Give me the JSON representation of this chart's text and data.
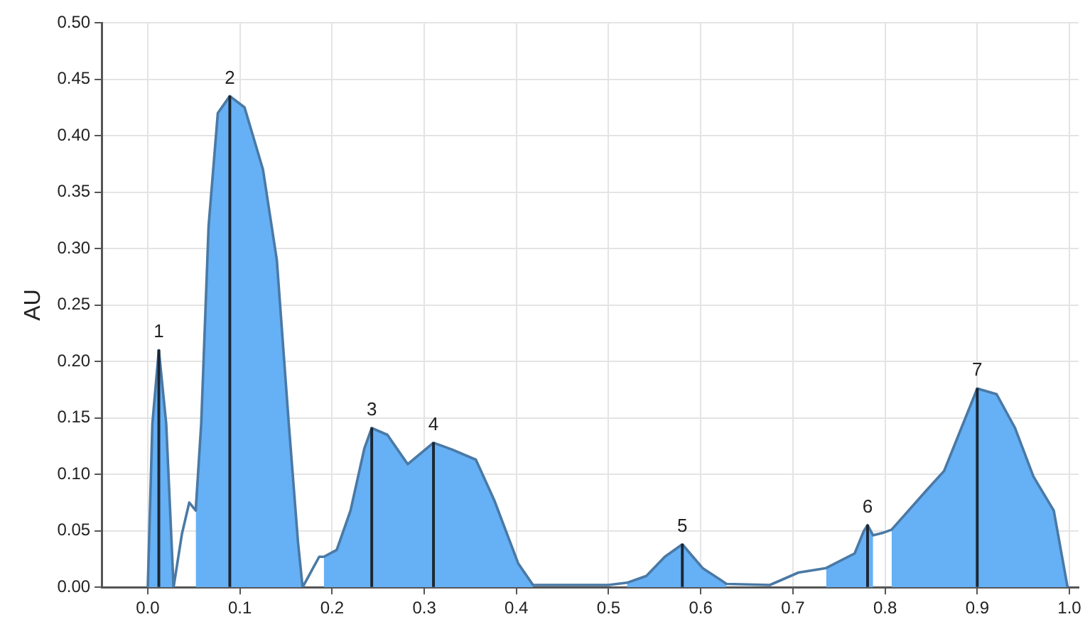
{
  "chart_data": {
    "type": "area",
    "ylabel": "AU",
    "x": [
      0,
      0.005,
      0.012,
      0.02,
      0.028,
      0.037,
      0.045,
      0.052,
      0.058,
      0.066,
      0.076,
      0.089,
      0.105,
      0.125,
      0.14,
      0.153,
      0.163,
      0.168,
      0.186,
      0.191,
      0.205,
      0.22,
      0.235,
      0.243,
      0.26,
      0.282,
      0.31,
      0.33,
      0.356,
      0.376,
      0.402,
      0.418,
      0.5,
      0.52,
      0.541,
      0.561,
      0.58,
      0.602,
      0.628,
      0.675,
      0.706,
      0.736,
      0.767,
      0.777,
      0.781,
      0.787,
      0.797,
      0.807,
      0.844,
      0.864,
      0.9,
      0.921,
      0.941,
      0.961,
      0.983,
      0.998
    ],
    "series": [
      {
        "color": "#66b0f5",
        "values": [
          0,
          0.145,
          0.21,
          0.145,
          0,
          null,
          null,
          0.068,
          0.145,
          0.32,
          0.42,
          0.435,
          0.425,
          0.37,
          0.29,
          0.145,
          0.04,
          0,
          null,
          0.027,
          0.033,
          0.068,
          0.123,
          0.141,
          0.135,
          0.109,
          0.128,
          0.122,
          0.113,
          0.077,
          0.021,
          0.002,
          null,
          0.004,
          0.01,
          0.027,
          0.038,
          0.017,
          0.003,
          null,
          null,
          0.017,
          0.03,
          0.05,
          0.055,
          0.046,
          null,
          0.051,
          0.085,
          0.103,
          0.176,
          0.171,
          0.141,
          0.098,
          0.068,
          0
        ]
      },
      {
        "type": "bar",
        "color": "#1b2633",
        "x": [
          0.012,
          0.089,
          0.243,
          0.31,
          0.58,
          0.781,
          0.9
        ],
        "values": [
          0.21,
          0.435,
          0.141,
          0.128,
          0.038,
          0.055,
          0.176
        ]
      },
      {
        "type": "line",
        "color": "#4a79a5",
        "values": [
          0,
          0.145,
          0.21,
          0.145,
          0,
          0.047,
          0.075,
          0.068,
          0.145,
          0.32,
          0.42,
          0.435,
          0.425,
          0.37,
          0.29,
          0.145,
          0.04,
          0,
          0.027,
          0.027,
          0.033,
          0.068,
          0.123,
          0.141,
          0.135,
          0.109,
          0.128,
          0.122,
          0.113,
          0.077,
          0.021,
          0.002,
          0.002,
          0.004,
          0.01,
          0.027,
          0.038,
          0.017,
          0.003,
          0.002,
          0.013,
          0.017,
          0.03,
          0.05,
          0.055,
          0.046,
          0.048,
          0.051,
          0.085,
          0.103,
          0.176,
          0.171,
          0.141,
          0.098,
          0.068,
          0
        ]
      }
    ],
    "xlim": [
      -0.05,
      1.01
    ],
    "xticks": [
      {
        "value": 0,
        "label": "0.0"
      },
      {
        "value": 0.1,
        "label": "0.1"
      },
      {
        "value": 0.2,
        "label": "0.2"
      },
      {
        "value": 0.3,
        "label": "0.3"
      },
      {
        "value": 0.4,
        "label": "0.4"
      },
      {
        "value": 0.5,
        "label": "0.5"
      },
      {
        "value": 0.6,
        "label": "0.6"
      },
      {
        "value": 0.7,
        "label": "0.7"
      },
      {
        "value": 0.8,
        "label": "0.8"
      },
      {
        "value": 0.9,
        "label": "0.9"
      },
      {
        "value": 1,
        "label": "1.0"
      }
    ],
    "ylim": [
      0,
      0.5
    ],
    "yticks": [
      {
        "value": 0,
        "label": "0.00"
      },
      {
        "value": 0.05,
        "label": "0.05"
      },
      {
        "value": 0.1,
        "label": "0.10"
      },
      {
        "value": 0.15,
        "label": "0.15"
      },
      {
        "value": 0.2,
        "label": "0.20"
      },
      {
        "value": 0.25,
        "label": "0.25"
      },
      {
        "value": 0.3,
        "label": "0.30"
      },
      {
        "value": 0.35,
        "label": "0.35"
      },
      {
        "value": 0.4,
        "label": "0.40"
      },
      {
        "value": 0.45,
        "label": "0.45"
      },
      {
        "value": 0.5,
        "label": "0.50"
      }
    ],
    "annotations": [
      {
        "text": "1",
        "x": 0.012,
        "y": 0.21
      },
      {
        "text": "2",
        "x": 0.089,
        "y": 0.435
      },
      {
        "text": "3",
        "x": 0.243,
        "y": 0.141
      },
      {
        "text": "4",
        "x": 0.31,
        "y": 0.128
      },
      {
        "text": "5",
        "x": 0.58,
        "y": 0.038
      },
      {
        "text": "6",
        "x": 0.781,
        "y": 0.055
      },
      {
        "text": "7",
        "x": 0.9,
        "y": 0.176
      }
    ],
    "grid": true,
    "legend": false,
    "marker": "none",
    "line_style": "solid"
  }
}
